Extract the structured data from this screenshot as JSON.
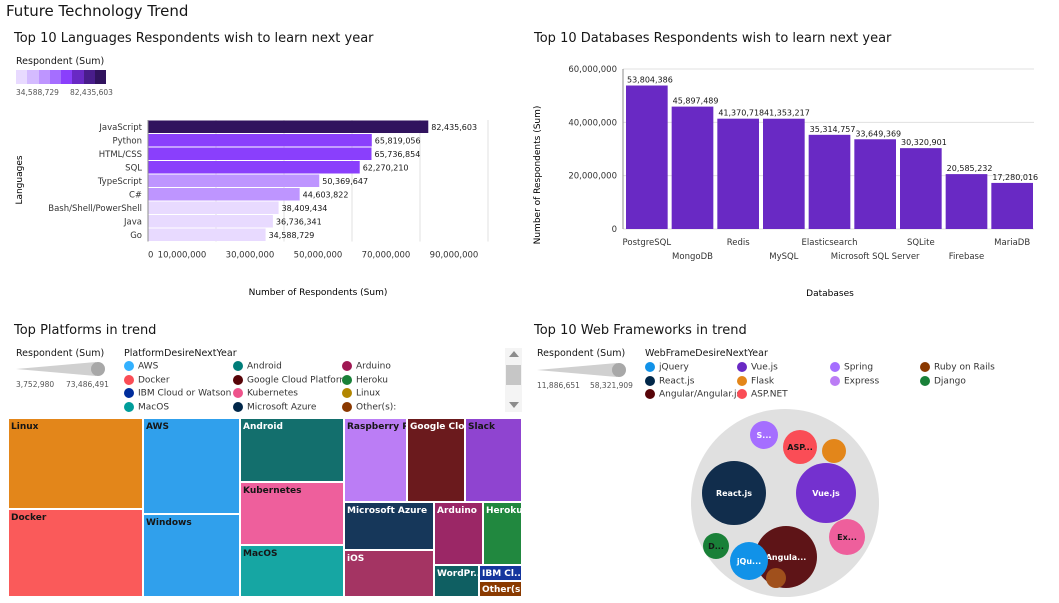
{
  "page_title": "Future Technology Trend",
  "colors": {
    "primary": "#6929c4"
  },
  "chart_data": [
    {
      "type": "bar",
      "orientation": "horizontal",
      "title": "Top 10 Languages Respondents wish to learn next year",
      "xlabel": "Number of Respondents (Sum)",
      "ylabel": "Languages",
      "categories": [
        "JavaScript",
        "Python",
        "HTML/CSS",
        "SQL",
        "TypeScript",
        "C#",
        "Bash/Shell/PowerShell",
        "Java",
        "Go"
      ],
      "values": [
        82435603,
        65819056,
        65736854,
        62270210,
        50369647,
        44603822,
        38409434,
        36736341,
        34588729
      ],
      "value_labels": [
        "82,435,603",
        "65,819,056",
        "65,736,854",
        "62,270,210",
        "50,369,647",
        "44,603,822",
        "38,409,434",
        "36,736,341",
        "34,588,729"
      ],
      "xticks": [
        "0",
        "10,000,000",
        "30,000,000",
        "50,000,000",
        "70,000,000",
        "90,000,000"
      ],
      "legend": {
        "title": "Respondent (Sum)",
        "min": "34,588,729",
        "max": "82,435,603"
      }
    },
    {
      "type": "bar",
      "title": "Top 10 Databases Respondents wish to learn next year",
      "xlabel": "Databases",
      "ylabel": "Number of Respondents (Sum)",
      "categories": [
        "PostgreSQL",
        "MongoDB",
        "Redis",
        "MySQL",
        "Elasticsearch",
        "Microsoft SQL Server",
        "SQLite",
        "Firebase",
        "MariaDB"
      ],
      "values": [
        53804386,
        45897489,
        41370718,
        41353217,
        35314757,
        33649369,
        30320901,
        20585232,
        17280016
      ],
      "value_labels": [
        "53,804,386",
        "45,897,489",
        "41,370,718",
        "41,353,217",
        "35,314,757",
        "33,649,369",
        "30,320,901",
        "20,585,232",
        "17,280,016"
      ],
      "yticks": [
        "0",
        "20,000,000",
        "40,000,000",
        "60,000,000"
      ],
      "ylim": [
        0,
        60000000
      ]
    },
    {
      "type": "treemap",
      "title": "Top Platforms in trend",
      "legend": {
        "size_title": "Respondent (Sum)",
        "min": "3,752,980",
        "max": "73,486,491",
        "color_title": "PlatformDesireNextYear",
        "items": [
          {
            "label": "AWS",
            "color": "#33b1ff"
          },
          {
            "label": "Android",
            "color": "#007d79"
          },
          {
            "label": "Arduino",
            "color": "#9f1853"
          },
          {
            "label": "Docker",
            "color": "#fa4d56"
          },
          {
            "label": "Google Cloud Platform",
            "color": "#570408"
          },
          {
            "label": "Heroku",
            "color": "#198038"
          },
          {
            "label": "IBM Cloud or Watson",
            "color": "#002d9c"
          },
          {
            "label": "Kubernetes",
            "color": "#ee538b"
          },
          {
            "label": "Linux",
            "color": "#b28600"
          },
          {
            "label": "MacOS",
            "color": "#009d9a"
          },
          {
            "label": "Microsoft Azure",
            "color": "#012749"
          },
          {
            "label": "Other(s):",
            "color": "#8a3800"
          }
        ]
      },
      "tiles": [
        {
          "label": "Linux",
          "color": "#e3861a"
        },
        {
          "label": "Docker",
          "color": "#fa5a5a"
        },
        {
          "label": "AWS",
          "color": "#30a0ec"
        },
        {
          "label": "Windows",
          "color": "#30a0ec"
        },
        {
          "label": "Android",
          "color": "#136f6d"
        },
        {
          "label": "Kubernetes",
          "color": "#ee5f9c"
        },
        {
          "label": "MacOS",
          "color": "#16a6a3"
        },
        {
          "label": "Raspberry Pi",
          "color": "#bb7df5"
        },
        {
          "label": "Google Clo...",
          "color": "#6b1a1d"
        },
        {
          "label": "Slack",
          "color": "#8f44d0"
        },
        {
          "label": "Microsoft Azure",
          "color": "#16375a"
        },
        {
          "label": "Arduino",
          "color": "#9b2766"
        },
        {
          "label": "Heroku",
          "color": "#21883f"
        },
        {
          "label": "iOS",
          "color": "#a43463"
        },
        {
          "label": "WordPr...",
          "color": "#0f5f62"
        },
        {
          "label": "IBM Cl...",
          "color": "#15369e"
        },
        {
          "label": "Other(s):",
          "color": "#8a3a00"
        }
      ]
    },
    {
      "type": "bubble",
      "title": "Top 10 Web Frameworks in trend",
      "legend": {
        "size_title": "Respondent (Sum)",
        "min": "11,886,651",
        "max": "58,321,909",
        "color_title": "WebFrameDesireNextYear",
        "items": [
          {
            "label": "jQuery",
            "color": "#1192e8"
          },
          {
            "label": "Vue.js",
            "color": "#6929c4"
          },
          {
            "label": "Spring",
            "color": "#a56eff"
          },
          {
            "label": "Ruby on Rails",
            "color": "#8a3800"
          },
          {
            "label": "React.js",
            "color": "#012749"
          },
          {
            "label": "Flask",
            "color": "#e3861a"
          },
          {
            "label": "Express",
            "color": "#bb7df5"
          },
          {
            "label": "Django",
            "color": "#198038"
          },
          {
            "label": "Angular/Angular.js",
            "color": "#570408"
          },
          {
            "label": "ASP.NET",
            "color": "#fa4d56"
          }
        ]
      },
      "bubbles": [
        {
          "label": "React.js",
          "color": "#112d4c"
        },
        {
          "label": "Vue.js",
          "color": "#7431cf"
        },
        {
          "label": "Angula...",
          "color": "#5e1417"
        },
        {
          "label": "ASP...",
          "color": "#fa4d56"
        },
        {
          "label": "Ex...",
          "color": "#ee5f9c"
        },
        {
          "label": "jQu...",
          "color": "#1192e8"
        },
        {
          "label": "D...",
          "color": "#198038"
        },
        {
          "label": "S...",
          "color": "#a56eff"
        },
        {
          "label": "",
          "color": "#e3861a"
        },
        {
          "label": "",
          "color": "#a0501c"
        }
      ]
    }
  ]
}
